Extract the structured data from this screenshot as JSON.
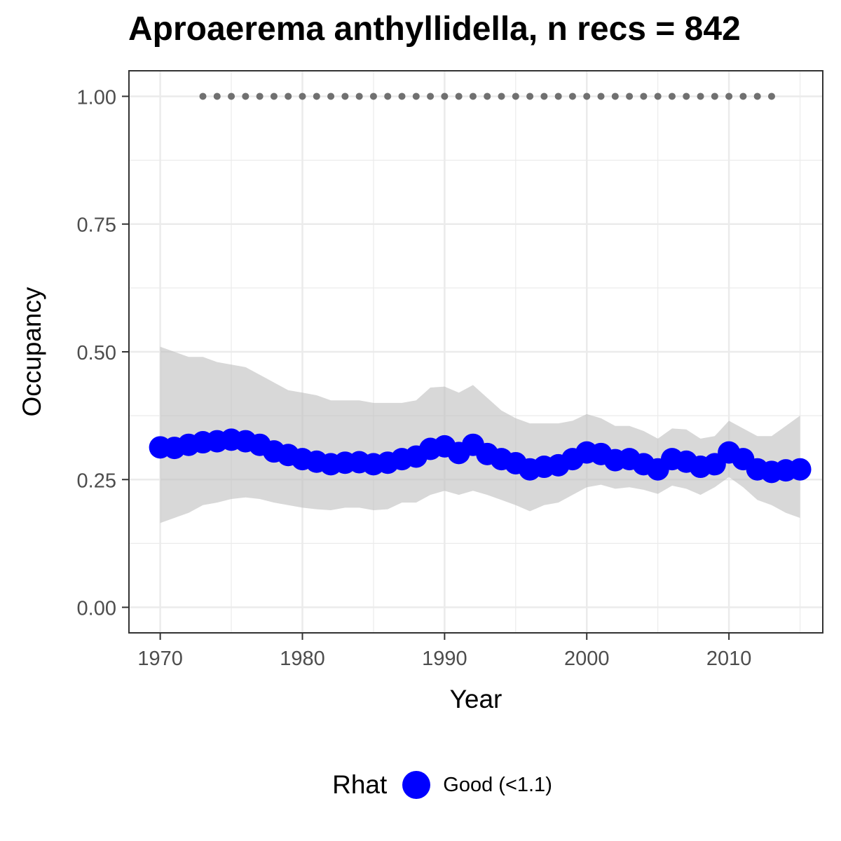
{
  "chart_data": {
    "type": "line",
    "title": "Aproaerema anthyllidella, n recs = 842",
    "xlabel": "Year",
    "ylabel": "Occupancy",
    "xlim": [
      1967.8,
      2016.6
    ],
    "ylim": [
      -0.05,
      1.05
    ],
    "x_ticks": [
      1970,
      1980,
      1990,
      2000,
      2010
    ],
    "x_tick_labels": [
      "1970",
      "1980",
      "1990",
      "2000",
      "2010"
    ],
    "y_ticks": [
      0,
      0.25,
      0.5,
      0.75,
      1
    ],
    "y_tick_labels": [
      "0.00",
      "0.25",
      "0.50",
      "0.75",
      "1.00"
    ],
    "grid": true,
    "colors": {
      "series": "#0000ff",
      "ribbon": "#bebebe",
      "records": "#707070",
      "grid": "#ebebeb",
      "axis": "#333333"
    },
    "years": [
      1970,
      1971,
      1972,
      1973,
      1974,
      1975,
      1976,
      1977,
      1978,
      1979,
      1980,
      1981,
      1982,
      1983,
      1984,
      1985,
      1986,
      1987,
      1988,
      1989,
      1990,
      1991,
      1992,
      1993,
      1994,
      1995,
      1996,
      1997,
      1998,
      1999,
      2000,
      2001,
      2002,
      2003,
      2004,
      2005,
      2006,
      2007,
      2008,
      2009,
      2010,
      2011,
      2012,
      2013,
      2014,
      2015
    ],
    "series": [
      {
        "values": [
          0.313,
          0.312,
          0.318,
          0.323,
          0.325,
          0.328,
          0.325,
          0.318,
          0.305,
          0.298,
          0.29,
          0.285,
          0.28,
          0.283,
          0.284,
          0.28,
          0.283,
          0.29,
          0.295,
          0.31,
          0.315,
          0.302,
          0.318,
          0.3,
          0.29,
          0.282,
          0.27,
          0.275,
          0.278,
          0.29,
          0.303,
          0.3,
          0.288,
          0.29,
          0.28,
          0.27,
          0.29,
          0.285,
          0.275,
          0.28,
          0.303,
          0.29,
          0.27,
          0.265,
          0.268,
          0.27
        ],
        "lower": [
          0.165,
          0.175,
          0.185,
          0.2,
          0.205,
          0.212,
          0.215,
          0.212,
          0.205,
          0.2,
          0.195,
          0.192,
          0.19,
          0.195,
          0.195,
          0.19,
          0.192,
          0.205,
          0.205,
          0.22,
          0.228,
          0.22,
          0.228,
          0.22,
          0.21,
          0.2,
          0.188,
          0.2,
          0.205,
          0.22,
          0.235,
          0.24,
          0.232,
          0.235,
          0.23,
          0.222,
          0.238,
          0.232,
          0.22,
          0.235,
          0.255,
          0.235,
          0.21,
          0.2,
          0.185,
          0.175
        ],
        "upper": [
          0.51,
          0.5,
          0.49,
          0.49,
          0.48,
          0.475,
          0.47,
          0.455,
          0.44,
          0.425,
          0.42,
          0.415,
          0.405,
          0.405,
          0.405,
          0.4,
          0.4,
          0.4,
          0.405,
          0.43,
          0.432,
          0.42,
          0.435,
          0.41,
          0.385,
          0.37,
          0.36,
          0.36,
          0.36,
          0.365,
          0.378,
          0.37,
          0.355,
          0.355,
          0.345,
          0.33,
          0.35,
          0.348,
          0.33,
          0.335,
          0.365,
          0.35,
          0.335,
          0.335,
          0.355,
          0.375
        ]
      }
    ],
    "record_years": [
      1973,
      1974,
      1975,
      1976,
      1977,
      1978,
      1979,
      1980,
      1981,
      1982,
      1983,
      1984,
      1985,
      1986,
      1987,
      1988,
      1989,
      1990,
      1991,
      1992,
      1993,
      1994,
      1995,
      1996,
      1997,
      1998,
      1999,
      2000,
      2001,
      2002,
      2003,
      2004,
      2005,
      2006,
      2007,
      2008,
      2009,
      2010,
      2011,
      2012,
      2013
    ],
    "record_value": 1.0,
    "legend": {
      "title": "Rhat",
      "position": "bottom",
      "entries": [
        {
          "label": "Good (<1.1)",
          "color": "#0000ff"
        }
      ]
    }
  }
}
